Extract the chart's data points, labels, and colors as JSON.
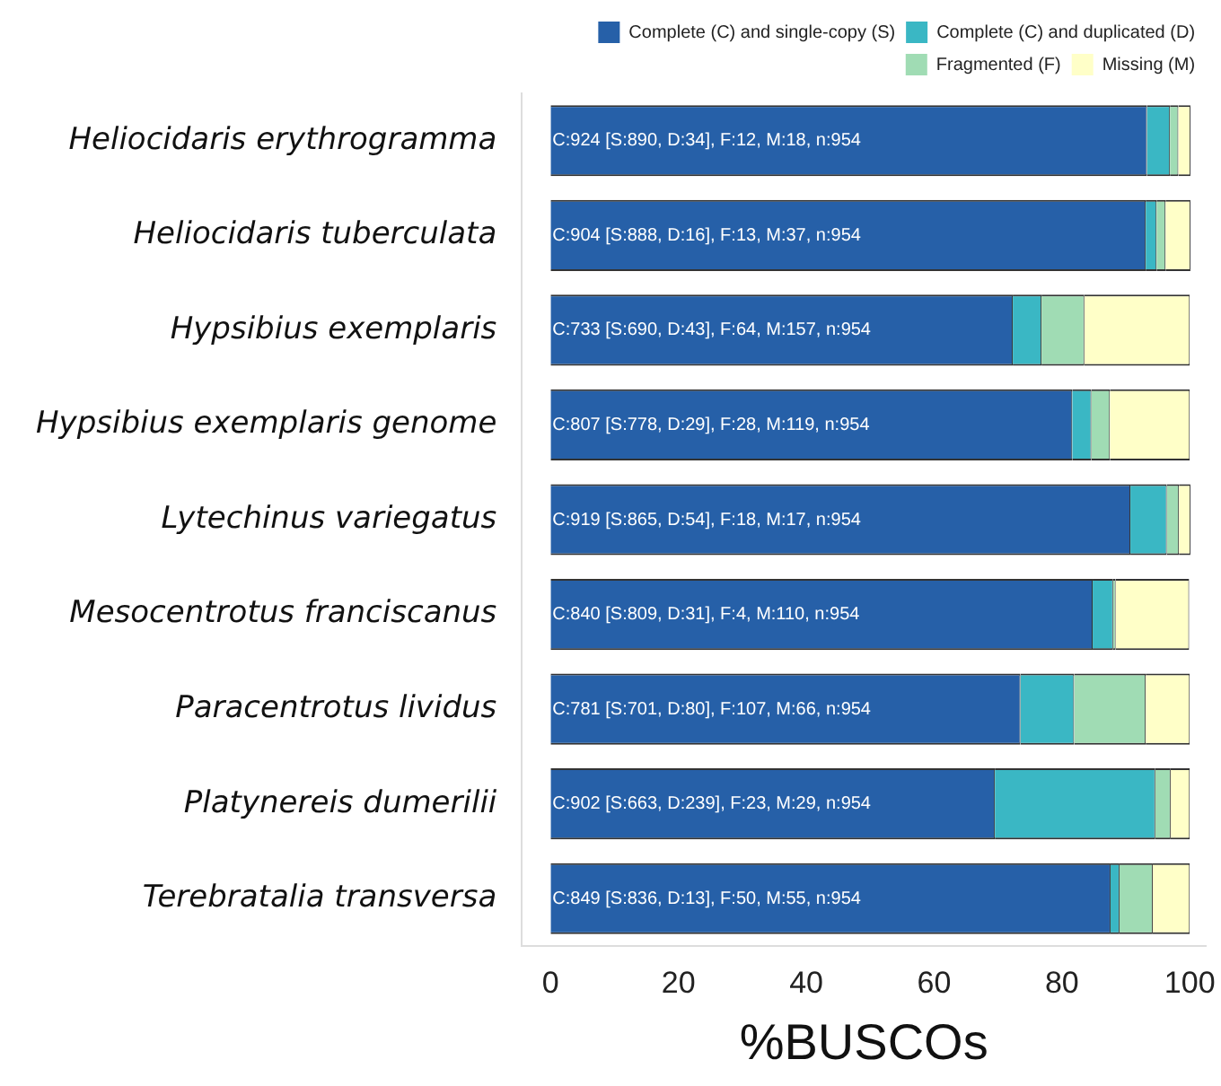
{
  "chart_data": {
    "type": "bar",
    "orientation": "horizontal",
    "stacked": true,
    "xlabel": "%BUSCOs",
    "legend": "top right",
    "categories": [
      "Heliocidaris erythrogramma",
      "Heliocidaris tuberculata",
      "Hypsibius exemplaris",
      "Hypsibius exemplaris genome",
      "Lytechinus variegatus",
      "Mesocentrotus franciscanus",
      "Paracentrotus lividus",
      "Platynereis dumerilii",
      "Terebratalia transversa"
    ],
    "series": [
      {
        "name": "Complete (C) and single-copy (S)",
        "color": "#2660a8",
        "values": [
          93.3,
          93.1,
          72.3,
          81.6,
          90.7,
          84.8,
          73.5,
          69.5,
          87.6
        ],
        "value_labels": [
          "C:924 [S:890, D:34], F:12, M:18, n:954",
          "C:904 [S:888, D:16], F:13, M:37, n:954",
          "C:733 [S:690, D:43], F:64, M:157, n:954",
          "C:807 [S:778, D:29], F:28, M:119, n:954",
          "C:919 [S:865, D:54], F:18, M:17, n:954",
          "C:840 [S:809, D:31], F:4, M:110, n:954",
          "C:781 [S:701, D:80], F:107, M:66, n:954",
          "C:902 [S:663, D:239], F:23, M:29, n:954",
          "C:849 [S:836, D:13], F:50, M:55, n:954"
        ]
      },
      {
        "name": "Complete (C) and duplicated (D)",
        "color": "#3ab7c4",
        "values": [
          3.6,
          1.7,
          4.5,
          3.0,
          5.7,
          3.2,
          8.4,
          25.1,
          1.4
        ]
      },
      {
        "name": "Fragmented (F)",
        "color": "#a0dcb4",
        "values": [
          1.3,
          1.4,
          6.7,
          2.9,
          1.9,
          0.4,
          11.2,
          2.4,
          5.2
        ]
      },
      {
        "name": "Missing (M)",
        "color": "#ffffc8",
        "values": [
          1.9,
          3.9,
          16.5,
          12.5,
          1.8,
          11.5,
          6.9,
          3.0,
          5.8
        ]
      }
    ],
    "xlim": [
      -4.5,
      102.5
    ],
    "xticks": [
      0,
      20,
      40,
      60,
      80,
      100
    ],
    "grid": false
  }
}
